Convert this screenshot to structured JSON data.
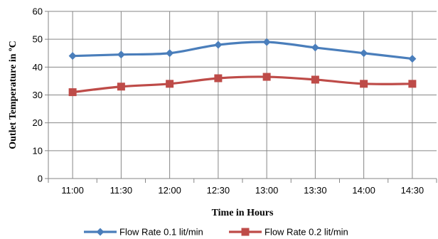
{
  "chart_data": {
    "type": "line",
    "title": "",
    "xlabel": "Time in Hours",
    "ylabel": "Outlet Temperature in ºC",
    "categories": [
      "11:00",
      "11:30",
      "12:00",
      "12:30",
      "13:00",
      "13:30",
      "14:00",
      "14:30"
    ],
    "ylim": [
      0,
      60
    ],
    "yticks": [
      "0",
      "10",
      "20",
      "30",
      "40",
      "50",
      "60"
    ],
    "grid": "on",
    "legend_position": "bottom",
    "series": [
      {
        "name": "Flow Rate 0.1 lit/min",
        "values": [
          44,
          44.5,
          45,
          48,
          49,
          47,
          45,
          43
        ],
        "color": "#4a7ebb",
        "marker": "diamond"
      },
      {
        "name": "Flow Rate 0.2 lit/min",
        "values": [
          31,
          33,
          34,
          36,
          36.5,
          35.5,
          34,
          34
        ],
        "color": "#be4b48",
        "marker": "square"
      }
    ]
  }
}
